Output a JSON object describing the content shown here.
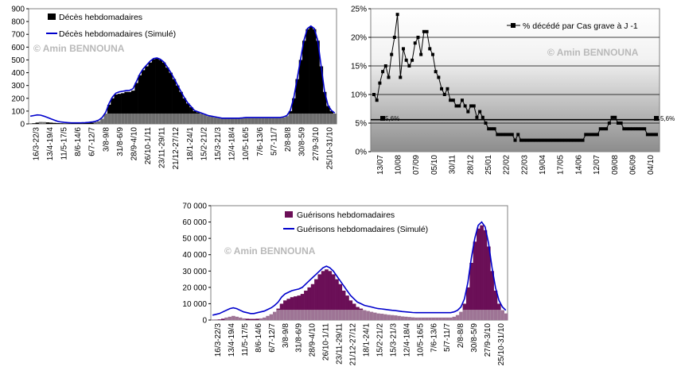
{
  "watermark": "© Amin BENNOUNA",
  "chart_data": [
    {
      "id": "deaths",
      "type": "bar",
      "title": "",
      "ylim": [
        0,
        900
      ],
      "yticks": [
        "0",
        "100",
        "200",
        "300",
        "400",
        "500",
        "600",
        "700",
        "800",
        "900"
      ],
      "xticks": [
        "16/3-22/3",
        "13/4-19/4",
        "11/5-17/5",
        "8/6-14/6",
        "6/7-12/7",
        "3/8-9/8",
        "31/8-6/9",
        "28/9-4/10",
        "26/10-1/11",
        "23/11-29/11",
        "21/12-27/12",
        "18/1-24/1",
        "15/2-21/2",
        "15/3-21/3",
        "12/4-18/4",
        "10/5-16/5",
        "7/6-13/6",
        "5/7-11/7",
        "2/8-8/8",
        "30/8-5/9",
        "27/9-3/10",
        "25/10-31/10"
      ],
      "series": [
        {
          "name": "Décès hebdomadaires",
          "kind": "bar",
          "color": "#000000",
          "values": [
            2,
            5,
            10,
            15,
            14,
            12,
            10,
            8,
            6,
            5,
            4,
            4,
            3,
            3,
            4,
            5,
            6,
            8,
            10,
            14,
            20,
            40,
            80,
            150,
            200,
            230,
            235,
            240,
            250,
            250,
            260,
            320,
            380,
            420,
            450,
            480,
            505,
            510,
            500,
            480,
            440,
            400,
            350,
            300,
            250,
            200,
            160,
            130,
            100,
            90,
            80,
            70,
            60,
            55,
            50,
            45,
            40,
            40,
            40,
            40,
            40,
            40,
            42,
            45,
            45,
            45,
            45,
            45,
            45,
            45,
            45,
            45,
            45,
            45,
            50,
            60,
            100,
            200,
            350,
            500,
            650,
            740,
            760,
            740,
            650,
            450,
            250,
            140,
            100,
            80
          ]
        },
        {
          "name": "Décès hebdomadaires (Simulé)",
          "kind": "line",
          "color": "#0000cc",
          "values": [
            60,
            65,
            70,
            68,
            60,
            50,
            40,
            30,
            20,
            15,
            12,
            10,
            8,
            8,
            8,
            9,
            10,
            12,
            15,
            20,
            30,
            50,
            90,
            160,
            210,
            240,
            250,
            255,
            260,
            262,
            275,
            330,
            390,
            430,
            460,
            490,
            510,
            515,
            505,
            485,
            445,
            405,
            355,
            305,
            255,
            205,
            165,
            135,
            105,
            95,
            85,
            75,
            65,
            60,
            55,
            50,
            45,
            45,
            45,
            45,
            45,
            45,
            47,
            50,
            50,
            50,
            50,
            50,
            50,
            50,
            50,
            50,
            50,
            50,
            55,
            65,
            105,
            205,
            355,
            505,
            655,
            745,
            765,
            745,
            655,
            455,
            255,
            145,
            105,
            85
          ]
        }
      ]
    },
    {
      "id": "pct",
      "type": "line",
      "title": "",
      "ylim": [
        0,
        25
      ],
      "yticks": [
        "0%",
        "5%",
        "10%",
        "15%",
        "20%",
        "25%"
      ],
      "xticks": [
        "13/07",
        "10/08",
        "07/09",
        "05/10",
        "30/11",
        "28/12",
        "25/01",
        "22/02",
        "22/03",
        "19/04",
        "17/05",
        "14/06",
        "12/07",
        "09/08",
        "06/09",
        "04/10"
      ],
      "reference_label": "5,6%",
      "reference_value": 5.6,
      "series": [
        {
          "name": "% décédé par Cas grave à J -1",
          "kind": "line",
          "color": "#000000",
          "values": [
            10,
            9,
            12,
            14,
            15,
            13,
            17,
            20,
            24,
            13,
            18,
            16,
            15,
            16,
            19,
            20,
            17,
            21,
            21,
            18,
            17,
            14,
            13,
            11,
            10,
            11,
            9,
            9,
            8,
            8,
            9,
            8,
            7,
            8,
            8,
            6,
            7,
            6,
            5,
            4,
            4,
            4,
            3,
            3,
            3,
            3,
            3,
            3,
            2,
            3,
            2,
            2,
            2,
            2,
            2,
            2,
            2,
            2,
            2,
            2,
            2,
            2,
            2,
            2,
            2,
            2,
            2,
            2,
            2,
            2,
            2,
            2,
            3,
            3,
            3,
            3,
            3,
            4,
            4,
            4,
            5,
            6,
            6,
            5,
            5,
            4,
            4,
            4,
            4,
            4,
            4,
            4,
            4,
            3,
            3,
            3,
            3
          ]
        }
      ]
    },
    {
      "id": "recoveries",
      "type": "bar",
      "title": "",
      "ylim": [
        0,
        70000
      ],
      "yticks": [
        "0",
        "10 000",
        "20 000",
        "30 000",
        "40 000",
        "50 000",
        "60 000",
        "70 000"
      ],
      "xticks": [
        "16/3-22/3",
        "13/4-19/4",
        "11/5-17/5",
        "8/6-14/6",
        "6/7-12/7",
        "3/8-9/8",
        "31/8-6/9",
        "28/9-4/10",
        "26/10-1/11",
        "23/11-29/11",
        "21/12-27/12",
        "18/1-24/1",
        "15/2-21/2",
        "15/3-21/3",
        "12/4-18/4",
        "10/5-16/5",
        "7/6-13/6",
        "5/7-11/7",
        "2/8-8/8",
        "30/8-5/9",
        "27/9-3/10",
        "25/10-31/10"
      ],
      "series": [
        {
          "name": "Guérisons hebdomadaires",
          "kind": "bar",
          "color": "#6b0f57",
          "values": [
            100,
            200,
            400,
            800,
            1500,
            2000,
            2500,
            2000,
            1500,
            1000,
            800,
            700,
            700,
            800,
            1000,
            1500,
            2500,
            3500,
            5000,
            7000,
            10000,
            12000,
            13000,
            14000,
            14500,
            15000,
            16000,
            18000,
            20000,
            22000,
            25000,
            28000,
            30000,
            31000,
            30000,
            28000,
            25000,
            22000,
            18000,
            15000,
            12000,
            10000,
            8000,
            7000,
            6000,
            5500,
            5000,
            4500,
            4000,
            3800,
            3500,
            3200,
            3000,
            2800,
            2500,
            2200,
            2000,
            1800,
            1600,
            1500,
            1500,
            1500,
            1500,
            1500,
            1500,
            1500,
            1500,
            1500,
            1500,
            1500,
            2000,
            3000,
            5000,
            10000,
            20000,
            35000,
            48000,
            56000,
            58000,
            55000,
            45000,
            30000,
            18000,
            10000,
            6000,
            4000
          ]
        },
        {
          "name": "Guérisons hebdomadaires (Simulé)",
          "kind": "line",
          "color": "#0000cc",
          "values": [
            3000,
            3500,
            4000,
            5000,
            6000,
            7000,
            7500,
            7000,
            6000,
            5000,
            4500,
            4000,
            4000,
            4500,
            5000,
            5500,
            6500,
            7500,
            9000,
            11000,
            14000,
            16000,
            17000,
            18000,
            18500,
            19000,
            20000,
            22000,
            24000,
            26000,
            28000,
            30000,
            32000,
            33000,
            32000,
            30000,
            27000,
            24000,
            21000,
            18000,
            15000,
            13000,
            11000,
            10000,
            9000,
            8500,
            8000,
            7500,
            7000,
            6800,
            6500,
            6200,
            6000,
            5800,
            5500,
            5200,
            5000,
            4800,
            4600,
            4500,
            4500,
            4500,
            4500,
            4500,
            4500,
            4500,
            4500,
            4500,
            4500,
            4500,
            5000,
            6000,
            8000,
            13000,
            23000,
            38000,
            50000,
            58000,
            60000,
            57000,
            47000,
            32000,
            20000,
            12000,
            8000,
            6000
          ]
        }
      ]
    }
  ]
}
